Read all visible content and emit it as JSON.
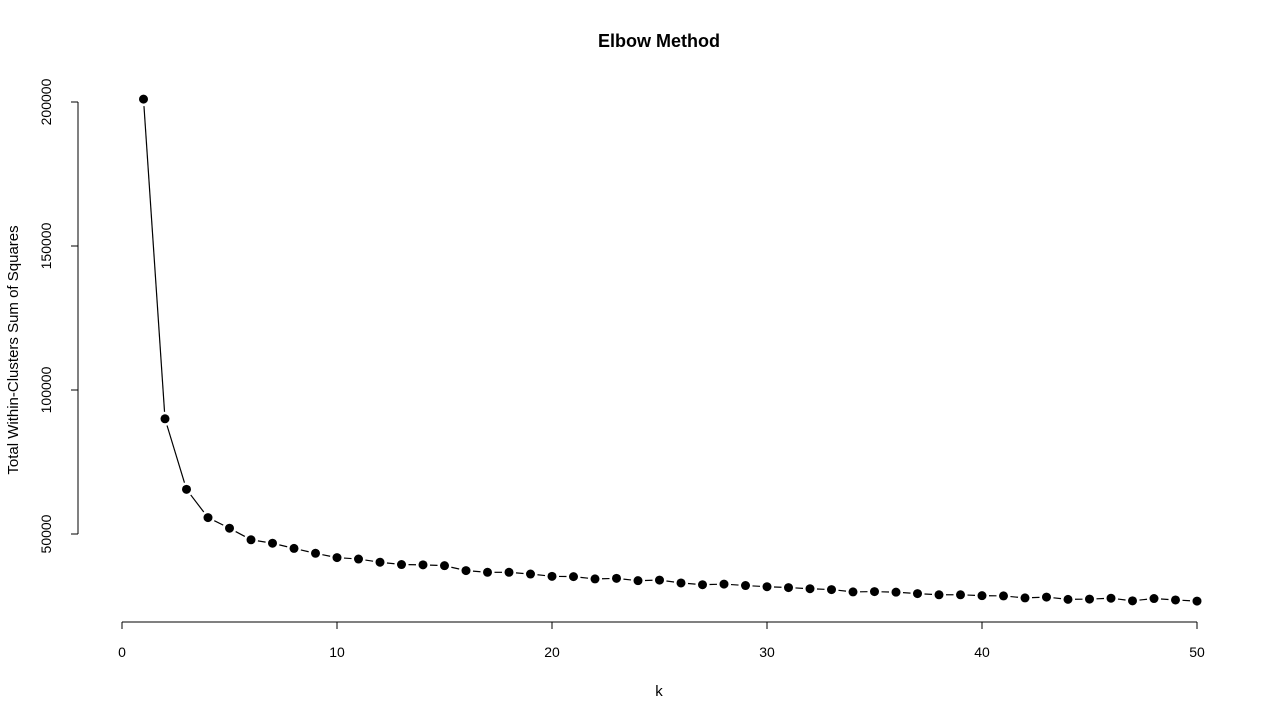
{
  "chart_data": {
    "type": "line",
    "title": "Elbow Method",
    "xlabel": "k",
    "ylabel": "Total Within-Clusters Sum of Squares",
    "xlim": [
      0,
      50
    ],
    "ylim": [
      20000,
      205000
    ],
    "xticks": [
      0,
      10,
      20,
      30,
      40,
      50
    ],
    "yticks": [
      50000,
      100000,
      150000,
      200000
    ],
    "grid": false,
    "marker": "filled-circle",
    "x": [
      1,
      2,
      3,
      4,
      5,
      6,
      7,
      8,
      9,
      10,
      11,
      12,
      13,
      14,
      15,
      16,
      17,
      18,
      19,
      20,
      21,
      22,
      23,
      24,
      25,
      26,
      27,
      28,
      29,
      30,
      31,
      32,
      33,
      34,
      35,
      36,
      37,
      38,
      39,
      40,
      41,
      42,
      43,
      44,
      45,
      46,
      47,
      48,
      49,
      50
    ],
    "values": [
      201000,
      90000,
      65500,
      55700,
      52000,
      48000,
      46800,
      45000,
      43300,
      41800,
      41300,
      40200,
      39400,
      39300,
      39000,
      37300,
      36700,
      36700,
      36100,
      35300,
      35200,
      34400,
      34600,
      33800,
      34000,
      33000,
      32400,
      32600,
      32100,
      31700,
      31400,
      31000,
      30700,
      29900,
      30000,
      29800,
      29300,
      28900,
      28900,
      28600,
      28500,
      27800,
      28100,
      27300,
      27400,
      27700,
      26800,
      27600,
      27100,
      26700
    ]
  }
}
